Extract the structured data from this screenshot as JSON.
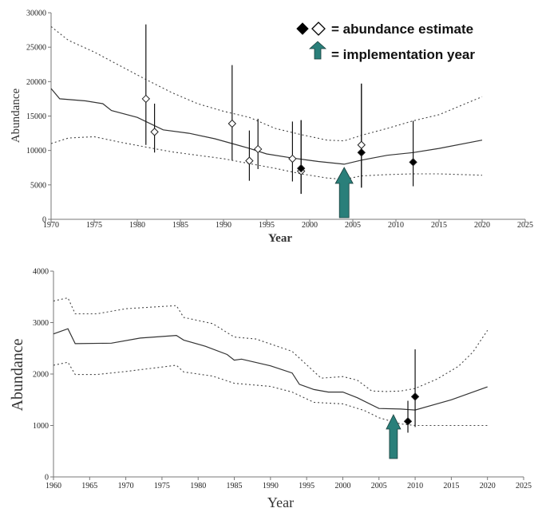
{
  "legend": {
    "abundance_label": "= abundance estimate",
    "implementation_label": "= implementation year",
    "arrow_color": "#2a7f7a"
  },
  "chart_data": [
    {
      "type": "line",
      "xlabel": "Year",
      "ylabel": "Abundance",
      "xlim": [
        1970,
        2025
      ],
      "ylim": [
        0,
        30000
      ],
      "x_ticks": [
        1970,
        1975,
        1980,
        1985,
        1990,
        1995,
        2000,
        2005,
        2010,
        2015,
        2020,
        2025
      ],
      "y_ticks": [
        0,
        5000,
        10000,
        15000,
        20000,
        25000,
        30000
      ],
      "median": {
        "x": [
          1970,
          1971,
          1974,
          1976,
          1977,
          1980,
          1983,
          1986,
          1989,
          1991,
          1993,
          1995,
          1998,
          2001,
          2004,
          2006,
          2009,
          2012,
          2015,
          2020
        ],
        "y": [
          19000,
          17500,
          17200,
          16800,
          15800,
          14800,
          13000,
          12500,
          11700,
          11000,
          10300,
          9500,
          8900,
          8400,
          8000,
          8600,
          9300,
          9700,
          10300,
          11500
        ]
      },
      "upper": {
        "x": [
          1970,
          1972,
          1975,
          1978,
          1981,
          1984,
          1987,
          1990,
          1993,
          1996,
          1999,
          2002,
          2004,
          2006,
          2009,
          2012,
          2015,
          2020
        ],
        "y": [
          28000,
          26000,
          24300,
          22300,
          20300,
          18400,
          16800,
          15700,
          14800,
          13200,
          12300,
          11500,
          11400,
          12200,
          13200,
          14300,
          15200,
          17800
        ]
      },
      "lower": {
        "x": [
          1970,
          1972,
          1975,
          1978,
          1981,
          1984,
          1987,
          1990,
          1993,
          1996,
          1999,
          2002,
          2004,
          2006,
          2009,
          2012,
          2015,
          2020
        ],
        "y": [
          11000,
          11800,
          12000,
          11200,
          10500,
          9800,
          9300,
          8800,
          8100,
          7400,
          6600,
          6000,
          5800,
          6300,
          6500,
          6600,
          6600,
          6400
        ]
      },
      "estimates": [
        {
          "x": 1981,
          "y": 17500,
          "lo": 10800,
          "hi": 28300,
          "filled": false
        },
        {
          "x": 1982,
          "y": 12700,
          "lo": 9700,
          "hi": 16800,
          "filled": false
        },
        {
          "x": 1991,
          "y": 13900,
          "lo": 8600,
          "hi": 22400,
          "filled": false
        },
        {
          "x": 1993,
          "y": 8500,
          "lo": 5600,
          "hi": 12900,
          "filled": false
        },
        {
          "x": 1994,
          "y": 10200,
          "lo": 7300,
          "hi": 14600,
          "filled": false
        },
        {
          "x": 1998,
          "y": 8800,
          "lo": 5500,
          "hi": 14200,
          "filled": false
        },
        {
          "x": 1999,
          "y": 7000,
          "lo": 3700,
          "hi": 14400,
          "filled": false
        },
        {
          "x": 1999,
          "y": 7400,
          "lo": 3700,
          "hi": 14400,
          "filled": true
        },
        {
          "x": 2006,
          "y": 10800,
          "lo": 4600,
          "hi": 19700,
          "filled": false
        },
        {
          "x": 2006,
          "y": 9700,
          "lo": 4600,
          "hi": 19700,
          "filled": true
        },
        {
          "x": 2012,
          "y": 8300,
          "lo": 4800,
          "hi": 14300,
          "filled": true
        }
      ],
      "implementation_year": 2004
    },
    {
      "type": "line",
      "xlabel": "Year",
      "ylabel": "Abundance",
      "xlim": [
        1960,
        2025
      ],
      "ylim": [
        0,
        4000
      ],
      "x_ticks": [
        1960,
        1965,
        1970,
        1975,
        1980,
        1985,
        1990,
        1995,
        2000,
        2005,
        2010,
        2015,
        2020,
        2025
      ],
      "y_ticks": [
        0,
        1000,
        2000,
        3000,
        4000
      ],
      "median": {
        "x": [
          1960,
          1962,
          1963,
          1968,
          1972,
          1977,
          1978,
          1981,
          1984,
          1985,
          1986,
          1990,
          1993,
          1994,
          1996,
          1998,
          2000,
          2002,
          2005,
          2008,
          2010,
          2015,
          2020
        ],
        "y": [
          2780,
          2880,
          2590,
          2600,
          2700,
          2750,
          2660,
          2540,
          2380,
          2270,
          2290,
          2160,
          2020,
          1800,
          1700,
          1650,
          1650,
          1540,
          1330,
          1320,
          1300,
          1500,
          1750
        ]
      },
      "upper": {
        "x": [
          1960,
          1962,
          1963,
          1966,
          1970,
          1977,
          1978,
          1982,
          1985,
          1988,
          1993,
          1997,
          2000,
          2002,
          2004,
          2006,
          2008,
          2010,
          2013,
          2016,
          2018,
          2020
        ],
        "y": [
          3420,
          3480,
          3170,
          3170,
          3270,
          3330,
          3100,
          2980,
          2720,
          2680,
          2440,
          1920,
          1950,
          1880,
          1670,
          1660,
          1670,
          1720,
          1900,
          2150,
          2430,
          2850
        ]
      },
      "lower": {
        "x": [
          1960,
          1962,
          1963,
          1966,
          1970,
          1977,
          1978,
          1982,
          1985,
          1990,
          1993,
          1996,
          2000,
          2003,
          2005,
          2008,
          2010,
          2015,
          2020
        ],
        "y": [
          2170,
          2230,
          1990,
          1990,
          2050,
          2170,
          2040,
          1960,
          1820,
          1760,
          1650,
          1450,
          1420,
          1290,
          1150,
          1030,
          1000,
          1000,
          1000
        ]
      },
      "estimates": [
        {
          "x": 2009,
          "y": 1080,
          "lo": 860,
          "hi": 1480,
          "filled": true
        },
        {
          "x": 2010,
          "y": 1560,
          "lo": 970,
          "hi": 2480,
          "filled": true
        }
      ],
      "implementation_year": 2007
    }
  ]
}
